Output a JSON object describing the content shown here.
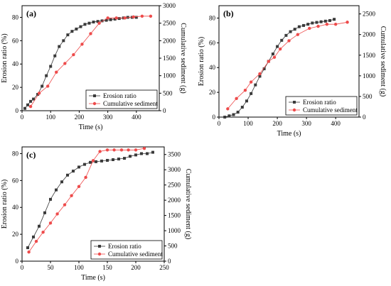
{
  "chart_data": [
    {
      "type": "line",
      "panel_label": "(a)",
      "xlabel": "Time (s)",
      "ylabel_left": "Erosion ratio (%)",
      "ylabel_right": "Cumulative sediment (g)",
      "xlim": [
        0,
        480
      ],
      "ylim_left": [
        0,
        90
      ],
      "ylim_right": [
        0,
        3000
      ],
      "x_ticks": [
        0,
        100,
        200,
        300,
        400
      ],
      "y_left_ticks": [
        0,
        20,
        40,
        60,
        80
      ],
      "y_right_ticks": [
        0,
        500,
        1000,
        1500,
        2000,
        2500,
        3000
      ],
      "series": [
        {
          "name": "Erosion ratio",
          "axis": "left",
          "color": "#3a3a3a",
          "marker": "square",
          "x": [
            10,
            20,
            30,
            40,
            55,
            70,
            85,
            100,
            115,
            130,
            145,
            160,
            175,
            190,
            205,
            220,
            235,
            250,
            265,
            280,
            295,
            310,
            325,
            340,
            355,
            370,
            385,
            400
          ],
          "y": [
            2,
            5,
            8,
            10,
            14,
            21,
            30,
            38,
            47,
            55,
            60,
            65,
            68,
            70,
            72,
            74,
            75,
            76,
            76.5,
            77,
            77.5,
            78,
            78.5,
            79,
            79.5,
            80,
            80,
            80
          ]
        },
        {
          "name": "Cumulative sediment",
          "axis": "right",
          "color": "#ee4b4b",
          "marker": "circle",
          "x": [
            30,
            60,
            90,
            120,
            150,
            180,
            210,
            240,
            270,
            300,
            330,
            360,
            390,
            420,
            450
          ],
          "y": [
            120,
            500,
            700,
            1100,
            1350,
            1600,
            1900,
            2200,
            2500,
            2650,
            2650,
            2650,
            2680,
            2700,
            2700
          ]
        }
      ],
      "legend_position": "bottom-right"
    },
    {
      "type": "line",
      "panel_label": "(b)",
      "xlabel": "Time (s)",
      "ylabel_left": "Erosion ratio (%)",
      "ylabel_right": "Cumulative sediment (g)",
      "xlim": [
        0,
        480
      ],
      "ylim_left": [
        0,
        90
      ],
      "ylim_right": [
        0,
        2700
      ],
      "x_ticks": [
        0,
        100,
        200,
        300,
        400
      ],
      "y_left_ticks": [
        0,
        20,
        40,
        60,
        80
      ],
      "y_right_ticks": [
        0,
        500,
        1000,
        1500,
        2000,
        2500
      ],
      "series": [
        {
          "name": "Erosion ratio",
          "axis": "left",
          "color": "#3a3a3a",
          "marker": "square",
          "x": [
            20,
            35,
            50,
            65,
            80,
            95,
            110,
            125,
            140,
            155,
            170,
            185,
            200,
            215,
            230,
            245,
            260,
            275,
            290,
            305,
            320,
            335,
            350,
            365,
            380,
            395
          ],
          "y": [
            0,
            1,
            2,
            4,
            8,
            13,
            19,
            26,
            33,
            39,
            45,
            51,
            57,
            62,
            66,
            69,
            71,
            73,
            74,
            75,
            76,
            76.5,
            77,
            77.5,
            78,
            79
          ]
        },
        {
          "name": "Cumulative sediment",
          "axis": "right",
          "color": "#ee4b4b",
          "marker": "circle",
          "x": [
            30,
            60,
            90,
            110,
            140,
            170,
            190,
            210,
            240,
            270,
            310,
            340,
            370,
            400,
            440
          ],
          "y": [
            200,
            450,
            650,
            850,
            1050,
            1350,
            1450,
            1650,
            1850,
            2000,
            2150,
            2200,
            2250,
            2250,
            2300
          ]
        }
      ],
      "legend_position": "bottom-right"
    },
    {
      "type": "line",
      "panel_label": "(c)",
      "xlabel": "Time (s)",
      "ylabel_left": "Erosion ratio (%)",
      "ylabel_right": "Cumulative sediment (g)",
      "xlim": [
        0,
        250
      ],
      "ylim_left": [
        0,
        85
      ],
      "ylim_right": [
        0,
        3750
      ],
      "x_ticks": [
        0,
        50,
        100,
        150,
        200,
        250
      ],
      "y_left_ticks": [
        0,
        20,
        40,
        60,
        80
      ],
      "y_right_ticks": [
        0,
        500,
        1000,
        1500,
        2000,
        2500,
        3000,
        3500
      ],
      "series": [
        {
          "name": "Erosion ratio",
          "axis": "left",
          "color": "#3a3a3a",
          "marker": "square",
          "x": [
            10,
            20,
            30,
            40,
            50,
            60,
            70,
            80,
            90,
            100,
            110,
            120,
            130,
            140,
            150,
            160,
            170,
            180,
            190,
            200,
            210,
            220,
            230
          ],
          "y": [
            10,
            18,
            26,
            36,
            46,
            53,
            59,
            64,
            67,
            70,
            72,
            73.5,
            74,
            74.5,
            75,
            75.5,
            76,
            76.5,
            78,
            79,
            80,
            80,
            81
          ]
        },
        {
          "name": "Cumulative sediment",
          "axis": "right",
          "color": "#ee4b4b",
          "marker": "circle",
          "x": [
            12,
            25,
            37,
            50,
            62,
            75,
            87,
            100,
            112,
            125,
            137,
            150,
            162,
            175,
            187,
            200,
            215
          ],
          "y": [
            300,
            650,
            950,
            1250,
            1550,
            1850,
            2150,
            2450,
            2750,
            3300,
            3600,
            3650,
            3650,
            3650,
            3650,
            3650,
            3700
          ]
        }
      ],
      "legend_position": "bottom-right"
    }
  ]
}
